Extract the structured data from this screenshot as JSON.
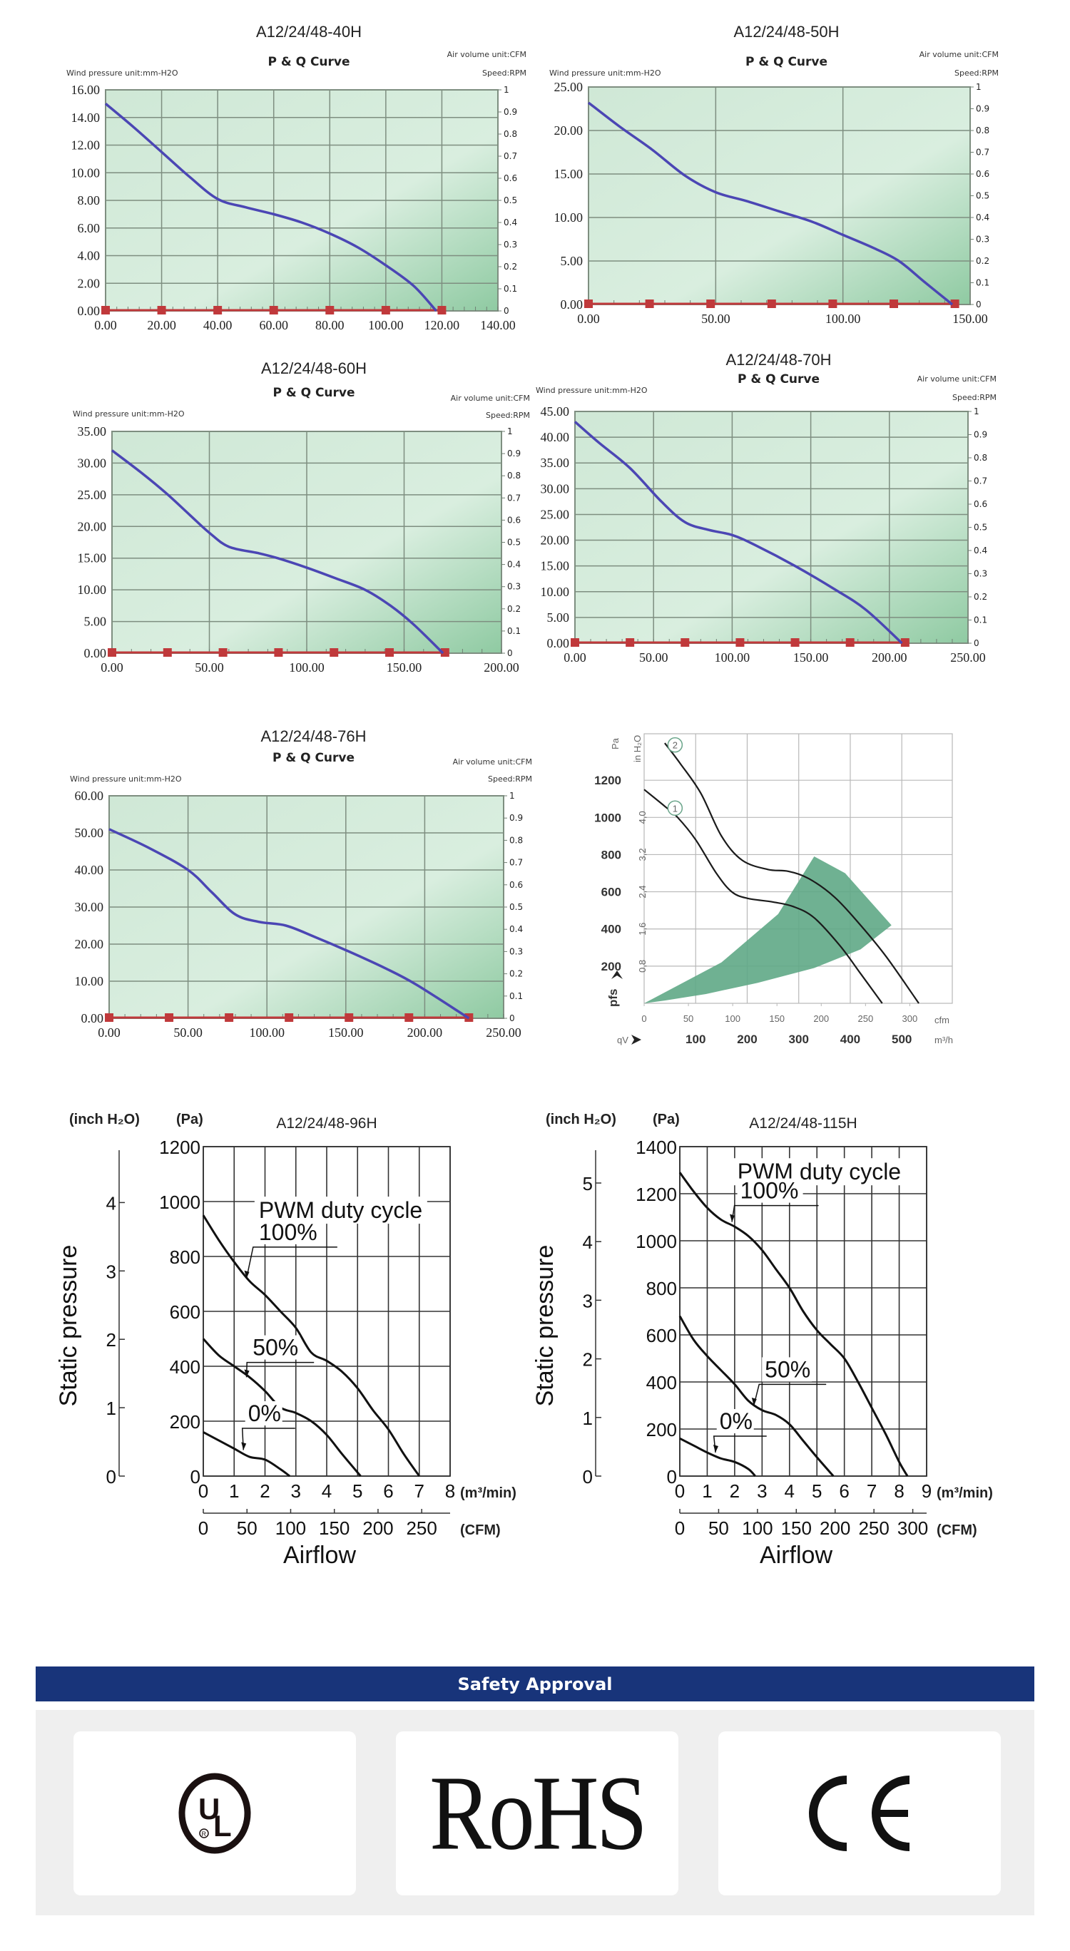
{
  "pq_common": {
    "subtitle": "P & Q Curve",
    "pressure_unit": "Wind pressure unit:mm-H2O",
    "air_unit": "Air volume unit:CFM",
    "speed_unit": "Speed:RPM",
    "right_ticks": [
      "0",
      "0.1",
      "0.2",
      "0.3",
      "0.4",
      "0.5",
      "0.6",
      "0.7",
      "0.8",
      "0.9",
      "1"
    ],
    "curve_color": "#4b46b4",
    "marker_color": "#c0393b"
  },
  "chart_data": [
    {
      "id": "40H",
      "type": "line",
      "title": "A12/24/48-40H",
      "subtitle": "P & Q Curve",
      "xlabel": "Air volume (CFM)",
      "ylabel": "Wind pressure (mm-H2O)",
      "xlim": [
        0,
        140
      ],
      "ylim": [
        0,
        16
      ],
      "y2lim": [
        0,
        1
      ],
      "xticks": [
        "0.00",
        "20.00",
        "40.00",
        "60.00",
        "80.00",
        "100.00",
        "120.00",
        "140.00"
      ],
      "xtick_values": [
        0,
        20,
        40,
        60,
        80,
        100,
        120,
        140
      ],
      "yticks": [
        "0.00",
        "2.00",
        "4.00",
        "6.00",
        "8.00",
        "10.00",
        "12.00",
        "14.00",
        "16.00"
      ],
      "ytick_values": [
        0,
        2,
        4,
        6,
        8,
        10,
        12,
        14,
        16
      ],
      "xgrid": [
        0,
        20,
        40,
        60,
        80,
        100,
        120,
        140
      ],
      "series": [
        {
          "name": "P-Q",
          "x": [
            0,
            10,
            20,
            30,
            40,
            50,
            60,
            70,
            80,
            90,
            100,
            110,
            118
          ],
          "y": [
            15,
            13.3,
            11.5,
            9.7,
            8.1,
            7.5,
            7.0,
            6.4,
            5.6,
            4.6,
            3.3,
            1.8,
            0
          ]
        }
      ],
      "markers": [
        0,
        20,
        40,
        60,
        80,
        100,
        120
      ]
    },
    {
      "id": "50H",
      "type": "line",
      "title": "A12/24/48-50H",
      "subtitle": "P & Q Curve",
      "xlabel": "Air volume (CFM)",
      "ylabel": "Wind pressure (mm-H2O)",
      "xlim": [
        0,
        150
      ],
      "ylim": [
        0,
        25
      ],
      "y2lim": [
        0,
        1
      ],
      "xticks": [
        "0.00",
        "50.00",
        "100.00",
        "150.00"
      ],
      "xtick_values": [
        0,
        50,
        100,
        150
      ],
      "yticks": [
        "0.00",
        "5.00",
        "10.00",
        "15.00",
        "20.00",
        "25.00"
      ],
      "ytick_values": [
        0,
        5,
        10,
        15,
        20,
        25
      ],
      "xgrid": [
        0,
        50,
        100,
        150
      ],
      "series": [
        {
          "name": "P-Q",
          "x": [
            0,
            12,
            25,
            38,
            50,
            62,
            75,
            88,
            100,
            112,
            122,
            132,
            143
          ],
          "y": [
            23.2,
            20.5,
            17.8,
            14.8,
            12.9,
            11.9,
            10.7,
            9.5,
            8.0,
            6.5,
            5.0,
            2.6,
            0
          ]
        }
      ],
      "markers": [
        0,
        24,
        48,
        72,
        96,
        120,
        144
      ]
    },
    {
      "id": "60H",
      "type": "line",
      "title": "A12/24/48-60H",
      "subtitle": "P & Q Curve",
      "xlabel": "Air volume (CFM)",
      "ylabel": "Wind pressure (mm-H2O)",
      "xlim": [
        0,
        200
      ],
      "ylim": [
        0,
        35
      ],
      "y2lim": [
        0,
        1
      ],
      "xticks": [
        "0.00",
        "50.00",
        "100.00",
        "150.00",
        "200.00"
      ],
      "xtick_values": [
        0,
        50,
        100,
        150,
        200
      ],
      "yticks": [
        "0.00",
        "5.00",
        "10.00",
        "15.00",
        "20.00",
        "25.00",
        "30.00",
        "35.00"
      ],
      "ytick_values": [
        0,
        5,
        10,
        15,
        20,
        25,
        30,
        35
      ],
      "xgrid": [
        0,
        50,
        100,
        150,
        200
      ],
      "series": [
        {
          "name": "P-Q",
          "x": [
            0,
            15,
            28,
            40,
            50,
            60,
            75,
            85,
            100,
            115,
            130,
            143,
            155,
            170
          ],
          "y": [
            32,
            28.5,
            25.2,
            21.8,
            19,
            16.8,
            15.8,
            15.0,
            13.5,
            11.8,
            10,
            7.5,
            4.5,
            0
          ]
        }
      ],
      "markers": [
        0,
        28.5,
        57,
        85.5,
        114,
        142.5,
        171
      ]
    },
    {
      "id": "70H",
      "type": "line",
      "title": "A12/24/48-70H",
      "subtitle": "P & Q Curve",
      "xlabel": "Air volume (CFM)",
      "ylabel": "Wind pressure (mm-H2O)",
      "xlim": [
        0,
        250
      ],
      "ylim": [
        0,
        45
      ],
      "y2lim": [
        0,
        1
      ],
      "xticks": [
        "0.00",
        "50.00",
        "100.00",
        "150.00",
        "200.00",
        "250.00"
      ],
      "xtick_values": [
        0,
        50,
        100,
        150,
        200,
        250
      ],
      "yticks": [
        "0.00",
        "5.00",
        "10.00",
        "15.00",
        "20.00",
        "25.00",
        "30.00",
        "35.00",
        "40.00",
        "45.00"
      ],
      "ytick_values": [
        0,
        5,
        10,
        15,
        20,
        25,
        30,
        35,
        40,
        45
      ],
      "xgrid": [
        0,
        50,
        100,
        150,
        200,
        250
      ],
      "series": [
        {
          "name": "P-Q",
          "x": [
            0,
            15,
            35,
            55,
            70,
            85,
            100,
            115,
            140,
            165,
            185,
            208
          ],
          "y": [
            43,
            39,
            34,
            27.5,
            23.5,
            22,
            21,
            19,
            15,
            10.5,
            6.5,
            0
          ]
        }
      ],
      "markers": [
        0,
        35,
        70,
        105,
        140,
        175,
        210
      ]
    },
    {
      "id": "76H",
      "type": "line",
      "title": "A12/24/48-76H",
      "subtitle": "P & Q Curve",
      "xlabel": "Air volume (CFM)",
      "ylabel": "Wind pressure (mm-H2O)",
      "xlim": [
        0,
        250
      ],
      "ylim": [
        0,
        60
      ],
      "y2lim": [
        0,
        1
      ],
      "xticks": [
        "0.00",
        "50.00",
        "100.00",
        "150.00",
        "200.00",
        "250.00"
      ],
      "xtick_values": [
        0,
        50,
        100,
        150,
        200,
        250
      ],
      "yticks": [
        "0.00",
        "10.00",
        "20.00",
        "30.00",
        "40.00",
        "50.00",
        "60.00"
      ],
      "ytick_values": [
        0,
        10,
        20,
        30,
        40,
        50,
        60
      ],
      "xgrid": [
        0,
        50,
        100,
        150,
        200,
        250
      ],
      "series": [
        {
          "name": "P-Q",
          "x": [
            0,
            25,
            50,
            65,
            80,
            95,
            112,
            130,
            152,
            175,
            195,
            228
          ],
          "y": [
            51,
            46,
            40,
            34,
            28,
            26,
            25,
            22,
            18,
            13.5,
            9,
            0
          ]
        }
      ],
      "markers": [
        0,
        38,
        76,
        114,
        152,
        190,
        228
      ]
    },
    {
      "id": "ebm",
      "type": "line",
      "title": "",
      "xlabel": "qV (m³/h)",
      "ylabel": "pfs (Pa)",
      "x_unit_primary": "m³/h",
      "x_unit_secondary": "cfm",
      "y_unit_primary": "Pa",
      "y_unit_secondary": "in H₂O",
      "y_axis_symbol": "pfs",
      "x_axis_symbol": "qV",
      "xlim": [
        0,
        598
      ],
      "ylim": [
        0,
        1450
      ],
      "xticks": [
        "100",
        "200",
        "300",
        "400",
        "500"
      ],
      "xtick_values": [
        100,
        200,
        300,
        400,
        500
      ],
      "cfm_ticks": [
        "0",
        "50",
        "100",
        "150",
        "200",
        "250",
        "300"
      ],
      "cfm_tick_values": [
        0,
        50,
        100,
        150,
        200,
        250,
        300
      ],
      "yticks": [
        "200",
        "400",
        "600",
        "800",
        "1000",
        "1200"
      ],
      "ytick_values": [
        200,
        400,
        600,
        800,
        1000,
        1200
      ],
      "inh2o_ticks": [
        "0,8",
        "1,6",
        "2,4",
        "3,2",
        "4,0"
      ],
      "inh2o_tick_values": [
        200,
        400,
        600,
        800,
        1000
      ],
      "series": [
        {
          "name": "1",
          "x": [
            0,
            40,
            65,
            100,
            140,
            170,
            200,
            250,
            290,
            330,
            380,
            420,
            462
          ],
          "y": [
            1150,
            1060,
            1000,
            880,
            700,
            600,
            565,
            545,
            520,
            460,
            310,
            160,
            0
          ]
        },
        {
          "name": "2",
          "x": [
            40,
            70,
            110,
            150,
            190,
            240,
            280,
            320,
            370,
            420,
            470,
            533
          ],
          "y": [
            1400,
            1290,
            1130,
            900,
            770,
            720,
            710,
            670,
            570,
            420,
            250,
            0
          ]
        }
      ],
      "operating_region": {
        "x": [
          0,
          150,
          260,
          330,
          390,
          480,
          420,
          330,
          220,
          120,
          40,
          0
        ],
        "y": [
          0,
          220,
          480,
          790,
          700,
          420,
          290,
          190,
          110,
          50,
          15,
          0
        ]
      },
      "region_color": "#5fa886"
    },
    {
      "id": "96H",
      "type": "line",
      "title": "A12/24/48-96H",
      "xlabel": "Airflow",
      "ylabel": "Static pressure",
      "x_unit_primary": "(m³/min)",
      "x_unit_secondary": "(CFM)",
      "y_unit_primary": "(Pa)",
      "y_unit_secondary": "(inch H₂O)",
      "legend_title": "PWM duty cycle",
      "xlim": [
        0,
        8
      ],
      "ylim": [
        0,
        1200
      ],
      "xticks": [
        "0",
        "1",
        "2",
        "3",
        "4",
        "5",
        "6",
        "7",
        "8"
      ],
      "xtick_values": [
        0,
        1,
        2,
        3,
        4,
        5,
        6,
        7,
        8
      ],
      "cfm_ticks": [
        "0",
        "50",
        "100",
        "150",
        "200",
        "250"
      ],
      "cfm_tick_values": [
        0,
        50,
        100,
        150,
        200,
        250
      ],
      "yticks": [
        "0",
        "200",
        "400",
        "600",
        "800",
        "1000",
        "1200"
      ],
      "ytick_values": [
        0,
        200,
        400,
        600,
        800,
        1000,
        1200
      ],
      "inh2o_ticks": [
        "0",
        "1",
        "2",
        "3",
        "4"
      ],
      "inh2o_tick_values": [
        0,
        1,
        2,
        3,
        4
      ],
      "series": [
        {
          "name": "100%",
          "x": [
            0,
            0.5,
            1,
            1.5,
            2,
            2.5,
            3,
            3.5,
            4,
            4.5,
            5,
            5.5,
            6,
            6.5,
            7
          ],
          "y": [
            950,
            860,
            780,
            710,
            660,
            600,
            540,
            450,
            420,
            380,
            320,
            240,
            170,
            80,
            0
          ]
        },
        {
          "name": "50%",
          "x": [
            0,
            0.5,
            1,
            1.5,
            2,
            2.5,
            3,
            3.5,
            4,
            4.5,
            5.1
          ],
          "y": [
            500,
            440,
            400,
            360,
            310,
            250,
            230,
            200,
            150,
            80,
            0
          ]
        },
        {
          "name": "0%",
          "x": [
            0,
            0.5,
            1,
            1.5,
            2,
            2.5,
            2.8
          ],
          "y": [
            160,
            130,
            100,
            70,
            60,
            25,
            0
          ]
        }
      ]
    },
    {
      "id": "115H",
      "type": "line",
      "title": "A12/24/48-115H",
      "xlabel": "Airflow",
      "ylabel": "Static pressure",
      "x_unit_primary": "(m³/min)",
      "x_unit_secondary": "(CFM)",
      "y_unit_primary": "(Pa)",
      "y_unit_secondary": "(inch H₂O)",
      "legend_title": "PWM duty cycle",
      "xlim": [
        0,
        9
      ],
      "ylim": [
        0,
        1400
      ],
      "xticks": [
        "0",
        "1",
        "2",
        "3",
        "4",
        "5",
        "6",
        "7",
        "8",
        "9"
      ],
      "xtick_values": [
        0,
        1,
        2,
        3,
        4,
        5,
        6,
        7,
        8,
        9
      ],
      "cfm_ticks": [
        "0",
        "50",
        "100",
        "150",
        "200",
        "250",
        "300"
      ],
      "cfm_tick_values": [
        0,
        50,
        100,
        150,
        200,
        250,
        300
      ],
      "yticks": [
        "0",
        "200",
        "400",
        "600",
        "800",
        "1000",
        "1200",
        "1400"
      ],
      "ytick_values": [
        0,
        200,
        400,
        600,
        800,
        1000,
        1200,
        1400
      ],
      "inh2o_ticks": [
        "0",
        "1",
        "2",
        "3",
        "4",
        "5"
      ],
      "inh2o_tick_values": [
        0,
        1,
        2,
        3,
        4,
        5
      ],
      "series": [
        {
          "name": "100%",
          "x": [
            0,
            0.5,
            1,
            1.5,
            2,
            2.5,
            3,
            3.5,
            4,
            4.5,
            5,
            5.5,
            6,
            6.5,
            7,
            7.5,
            8,
            8.3
          ],
          "y": [
            1290,
            1210,
            1140,
            1090,
            1060,
            1020,
            960,
            880,
            800,
            700,
            620,
            560,
            500,
            400,
            290,
            180,
            60,
            0
          ]
        },
        {
          "name": "50%",
          "x": [
            0,
            0.5,
            1,
            1.5,
            2,
            2.5,
            3,
            3.5,
            4,
            4.5,
            5,
            5.6
          ],
          "y": [
            680,
            580,
            510,
            450,
            390,
            320,
            280,
            260,
            220,
            150,
            80,
            0
          ]
        },
        {
          "name": "0%",
          "x": [
            0,
            0.5,
            1,
            1.5,
            2,
            2.5,
            2.75
          ],
          "y": [
            160,
            130,
            100,
            75,
            60,
            30,
            0
          ]
        }
      ]
    }
  ],
  "safety": {
    "title": "Safety Approval",
    "banner_color": "#18347a",
    "certifications": [
      {
        "name": "UL",
        "icon": "ul-logo-icon"
      },
      {
        "name": "RoHS",
        "icon": "rohs-logo"
      },
      {
        "name": "CE",
        "icon": "ce-mark-icon"
      }
    ]
  }
}
